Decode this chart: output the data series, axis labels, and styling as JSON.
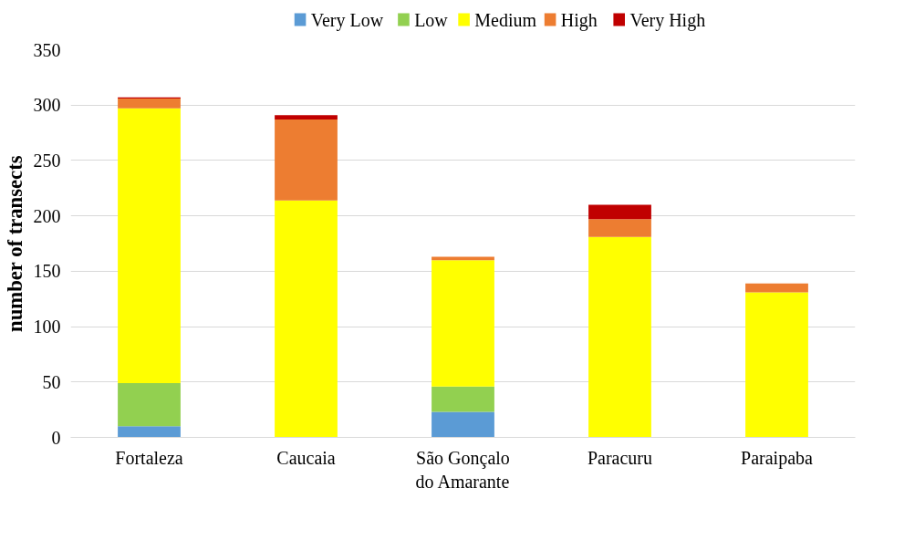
{
  "chart_data": {
    "type": "bar",
    "stacked": true,
    "ylabel": "number of transects",
    "categories": [
      "Fortaleza",
      "Caucaia",
      "São Gonçalo\ndo Amarante",
      "Paracuru",
      "Paraipaba"
    ],
    "series": [
      {
        "name": "Very Low",
        "color": "#5b9bd5",
        "values": [
          10,
          0,
          23,
          0,
          0
        ]
      },
      {
        "name": "Low",
        "color": "#92d050",
        "values": [
          39,
          0,
          23,
          0,
          0
        ]
      },
      {
        "name": "Medium",
        "color": "#ffff00",
        "values": [
          248,
          214,
          114,
          181,
          131
        ]
      },
      {
        "name": "High",
        "color": "#ed7d31",
        "values": [
          9,
          73,
          3,
          16,
          8
        ]
      },
      {
        "name": "Very High",
        "color": "#c00000",
        "values": [
          1,
          4,
          0,
          13,
          0
        ]
      }
    ],
    "ylim": [
      0,
      350
    ],
    "yticks": [
      0,
      50,
      100,
      150,
      200,
      250,
      300,
      350
    ],
    "grid": "y",
    "legend": "top"
  }
}
